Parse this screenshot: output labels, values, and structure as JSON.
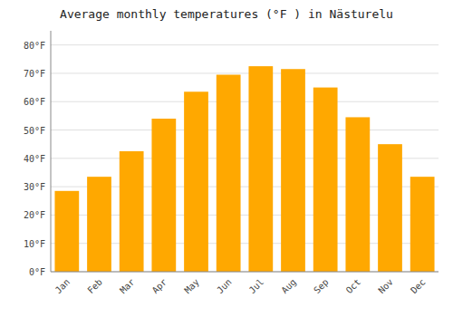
{
  "chart_data": {
    "type": "bar",
    "title": "Average monthly temperatures (°F ) in Nästurelu",
    "categories": [
      "Jan",
      "Feb",
      "Mar",
      "Apr",
      "May",
      "Jun",
      "Jul",
      "Aug",
      "Sep",
      "Oct",
      "Nov",
      "Dec"
    ],
    "values": [
      28.5,
      33.5,
      42.5,
      54.0,
      63.5,
      69.5,
      72.5,
      71.5,
      65.0,
      54.5,
      45.0,
      33.5
    ],
    "color": "#FFA800",
    "ylim": [
      0,
      85
    ],
    "yticks": [
      {
        "value": 0,
        "label": "0°F"
      },
      {
        "value": 10,
        "label": "10°F"
      },
      {
        "value": 20,
        "label": "20°F"
      },
      {
        "value": 30,
        "label": "30°F"
      },
      {
        "value": 40,
        "label": "40°F"
      },
      {
        "value": 50,
        "label": "50°F"
      },
      {
        "value": 60,
        "label": "60°F"
      },
      {
        "value": 70,
        "label": "70°F"
      },
      {
        "value": 80,
        "label": "80°F"
      }
    ],
    "grid": true
  }
}
